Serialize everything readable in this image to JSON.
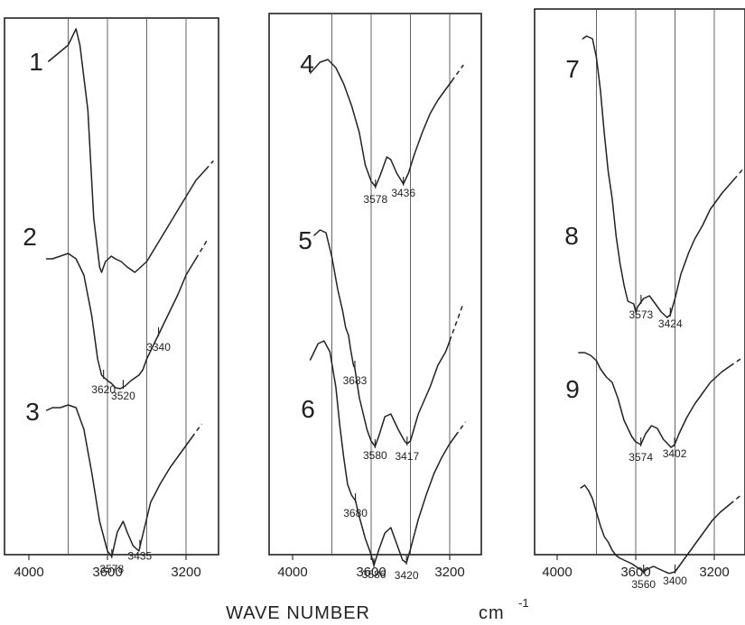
{
  "xlabel": {
    "text": "WAVE NUMBER",
    "unit": "cm",
    "unit_exp": "-1"
  },
  "chart_data": {
    "type": "line",
    "xlabel": "WAVE NUMBER cm-1",
    "xlim": [
      4000,
      3000
    ],
    "x_ticks": [
      4000,
      3600,
      3200
    ],
    "x_tick_labels": [
      "4000",
      "3600",
      "3200"
    ],
    "grid": true,
    "panels": [
      {
        "series": [
          {
            "name": "1",
            "peaks": [],
            "points": [
              [
                3900,
                0.06
              ],
              [
                3800,
                0.03
              ],
              [
                3760,
                0.0
              ],
              [
                3740,
                0.03
              ],
              [
                3700,
                0.15
              ],
              [
                3670,
                0.35
              ],
              [
                3640,
                0.44
              ],
              [
                3630,
                0.45
              ],
              [
                3610,
                0.43
              ],
              [
                3580,
                0.42
              ],
              [
                3560,
                0.425
              ],
              [
                3530,
                0.43
              ],
              [
                3500,
                0.44
              ],
              [
                3460,
                0.45
              ],
              [
                3400,
                0.43
              ],
              [
                3350,
                0.4
              ],
              [
                3300,
                0.37
              ],
              [
                3250,
                0.34
              ],
              [
                3200,
                0.31
              ],
              [
                3150,
                0.28
              ],
              [
                3100,
                0.26
              ]
            ],
            "extension_to": 3060
          },
          {
            "name": "2",
            "peaks": [
              3620,
              3520,
              3340
            ],
            "points": [
              [
                3910,
                0.425
              ],
              [
                3880,
                0.425
              ],
              [
                3840,
                0.42
              ],
              [
                3800,
                0.415
              ],
              [
                3760,
                0.425
              ],
              [
                3720,
                0.455
              ],
              [
                3680,
                0.53
              ],
              [
                3650,
                0.61
              ],
              [
                3630,
                0.64
              ],
              [
                3600,
                0.65
              ],
              [
                3580,
                0.655
              ],
              [
                3560,
                0.663
              ],
              [
                3535,
                0.665
              ],
              [
                3510,
                0.66
              ],
              [
                3480,
                0.65
              ],
              [
                3440,
                0.64
              ],
              [
                3420,
                0.63
              ],
              [
                3400,
                0.61
              ],
              [
                3360,
                0.58
              ],
              [
                3320,
                0.55
              ],
              [
                3280,
                0.52
              ],
              [
                3240,
                0.49
              ],
              [
                3200,
                0.455
              ],
              [
                3150,
                0.425
              ]
            ],
            "extension_to": 3090
          },
          {
            "name": "3",
            "peaks": [
              3578,
              3435
            ],
            "points": [
              [
                3910,
                0.705
              ],
              [
                3880,
                0.7
              ],
              [
                3840,
                0.7
              ],
              [
                3800,
                0.695
              ],
              [
                3760,
                0.7
              ],
              [
                3720,
                0.74
              ],
              [
                3680,
                0.82
              ],
              [
                3640,
                0.91
              ],
              [
                3600,
                0.965
              ],
              [
                3578,
                0.975
              ],
              [
                3550,
                0.93
              ],
              [
                3520,
                0.91
              ],
              [
                3500,
                0.93
              ],
              [
                3470,
                0.955
              ],
              [
                3440,
                0.965
              ],
              [
                3410,
                0.92
              ],
              [
                3380,
                0.875
              ],
              [
                3330,
                0.84
              ],
              [
                3280,
                0.81
              ],
              [
                3240,
                0.79
              ],
              [
                3200,
                0.77
              ],
              [
                3170,
                0.755
              ]
            ],
            "extension_to": 3120
          }
        ]
      },
      {
        "series": [
          {
            "name": "4",
            "peaks": [
              3578,
              3436
            ],
            "points": [
              [
                3910,
                0.06
              ],
              [
                3860,
                0.04
              ],
              [
                3820,
                0.035
              ],
              [
                3780,
                0.05
              ],
              [
                3740,
                0.08
              ],
              [
                3700,
                0.12
              ],
              [
                3660,
                0.17
              ],
              [
                3630,
                0.23
              ],
              [
                3600,
                0.26
              ],
              [
                3578,
                0.27
              ],
              [
                3555,
                0.25
              ],
              [
                3520,
                0.215
              ],
              [
                3500,
                0.22
              ],
              [
                3470,
                0.245
              ],
              [
                3436,
                0.265
              ],
              [
                3410,
                0.245
              ],
              [
                3380,
                0.21
              ],
              [
                3340,
                0.17
              ],
              [
                3300,
                0.135
              ],
              [
                3260,
                0.11
              ],
              [
                3220,
                0.09
              ],
              [
                3190,
                0.075
              ]
            ],
            "extension_to": 3130
          },
          {
            "name": "5",
            "peaks": [
              3683,
              3580,
              3417
            ],
            "points": [
              [
                3890,
                0.36
              ],
              [
                3860,
                0.35
              ],
              [
                3830,
                0.355
              ],
              [
                3800,
                0.4
              ],
              [
                3770,
                0.46
              ],
              [
                3745,
                0.5
              ],
              [
                3730,
                0.53
              ],
              [
                3715,
                0.545
              ],
              [
                3705,
                0.57
              ],
              [
                3690,
                0.6
              ],
              [
                3683,
                0.605
              ],
              [
                3660,
                0.66
              ],
              [
                3620,
                0.72
              ],
              [
                3600,
                0.74
              ],
              [
                3580,
                0.75
              ],
              [
                3560,
                0.73
              ],
              [
                3530,
                0.695
              ],
              [
                3500,
                0.69
              ],
              [
                3460,
                0.72
              ],
              [
                3430,
                0.74
              ],
              [
                3417,
                0.745
              ],
              [
                3400,
                0.74
              ],
              [
                3360,
                0.69
              ],
              [
                3300,
                0.64
              ],
              [
                3260,
                0.6
              ],
              [
                3220,
                0.575
              ],
              [
                3200,
                0.555
              ]
            ],
            "extension_to": 3130
          },
          {
            "name": "6",
            "peaks": [
              3680,
              3586,
              3420
            ],
            "points": [
              [
                3910,
                0.59
              ],
              [
                3870,
                0.56
              ],
              [
                3840,
                0.555
              ],
              [
                3810,
                0.575
              ],
              [
                3780,
                0.64
              ],
              [
                3760,
                0.71
              ],
              [
                3740,
                0.77
              ],
              [
                3720,
                0.82
              ],
              [
                3700,
                0.84
              ],
              [
                3690,
                0.845
              ],
              [
                3680,
                0.85
              ],
              [
                3660,
                0.88
              ],
              [
                3630,
                0.92
              ],
              [
                3600,
                0.95
              ],
              [
                3586,
                0.97
              ],
              [
                3560,
                0.94
              ],
              [
                3530,
                0.91
              ],
              [
                3500,
                0.9
              ],
              [
                3470,
                0.93
              ],
              [
                3440,
                0.96
              ],
              [
                3420,
                0.965
              ],
              [
                3400,
                0.94
              ],
              [
                3360,
                0.885
              ],
              [
                3320,
                0.84
              ],
              [
                3280,
                0.8
              ],
              [
                3240,
                0.77
              ],
              [
                3200,
                0.745
              ],
              [
                3170,
                0.73
              ]
            ],
            "extension_to": 3120
          }
        ]
      },
      {
        "series": [
          {
            "name": "7",
            "peaks": [
              3573,
              3424
            ],
            "points": [
              [
                3870,
                0.005
              ],
              [
                3850,
                0.0
              ],
              [
                3820,
                0.005
              ],
              [
                3800,
                0.04
              ],
              [
                3780,
                0.1
              ],
              [
                3760,
                0.18
              ],
              [
                3740,
                0.25
              ],
              [
                3720,
                0.3
              ],
              [
                3700,
                0.37
              ],
              [
                3680,
                0.42
              ],
              [
                3660,
                0.46
              ],
              [
                3640,
                0.49
              ],
              [
                3610,
                0.495
              ],
              [
                3600,
                0.51
              ],
              [
                3590,
                0.5
              ],
              [
                3560,
                0.485
              ],
              [
                3530,
                0.48
              ],
              [
                3500,
                0.495
              ],
              [
                3470,
                0.51
              ],
              [
                3440,
                0.52
              ],
              [
                3424,
                0.515
              ],
              [
                3400,
                0.485
              ],
              [
                3370,
                0.44
              ],
              [
                3330,
                0.4
              ],
              [
                3300,
                0.375
              ],
              [
                3260,
                0.35
              ],
              [
                3220,
                0.32
              ],
              [
                3160,
                0.29
              ],
              [
                3100,
                0.265
              ]
            ],
            "extension_to": 3050
          },
          {
            "name": "8",
            "peaks": [
              3574,
              3402
            ],
            "points": [
              [
                3890,
                0.585
              ],
              [
                3860,
                0.585
              ],
              [
                3830,
                0.59
              ],
              [
                3800,
                0.6
              ],
              [
                3780,
                0.615
              ],
              [
                3750,
                0.63
              ],
              [
                3720,
                0.64
              ],
              [
                3690,
                0.67
              ],
              [
                3660,
                0.71
              ],
              [
                3620,
                0.74
              ],
              [
                3600,
                0.75
              ],
              [
                3574,
                0.755
              ],
              [
                3550,
                0.735
              ],
              [
                3520,
                0.72
              ],
              [
                3490,
                0.725
              ],
              [
                3460,
                0.745
              ],
              [
                3420,
                0.76
              ],
              [
                3402,
                0.755
              ],
              [
                3380,
                0.735
              ],
              [
                3340,
                0.705
              ],
              [
                3300,
                0.68
              ],
              [
                3260,
                0.66
              ],
              [
                3220,
                0.64
              ],
              [
                3160,
                0.62
              ],
              [
                3120,
                0.61
              ]
            ],
            "extension_to": 3060
          },
          {
            "name": "9",
            "peaks": [
              3560,
              3400
            ],
            "points": [
              [
                3880,
                0.835
              ],
              [
                3860,
                0.83
              ],
              [
                3840,
                0.84
              ],
              [
                3820,
                0.855
              ],
              [
                3800,
                0.88
              ],
              [
                3780,
                0.905
              ],
              [
                3760,
                0.925
              ],
              [
                3740,
                0.935
              ],
              [
                3720,
                0.95
              ],
              [
                3700,
                0.96
              ],
              [
                3680,
                0.965
              ],
              [
                3650,
                0.97
              ],
              [
                3620,
                0.975
              ],
              [
                3600,
                0.98
              ],
              [
                3580,
                0.985
              ],
              [
                3560,
                0.99
              ],
              [
                3540,
                0.985
              ],
              [
                3510,
                0.98
              ],
              [
                3480,
                0.985
              ],
              [
                3450,
                0.99
              ],
              [
                3430,
                0.993
              ],
              [
                3400,
                0.99
              ],
              [
                3370,
                0.975
              ],
              [
                3330,
                0.955
              ],
              [
                3290,
                0.935
              ],
              [
                3250,
                0.915
              ],
              [
                3210,
                0.895
              ],
              [
                3170,
                0.88
              ],
              [
                3120,
                0.865
              ]
            ],
            "extension_to": 3060
          }
        ]
      }
    ]
  }
}
